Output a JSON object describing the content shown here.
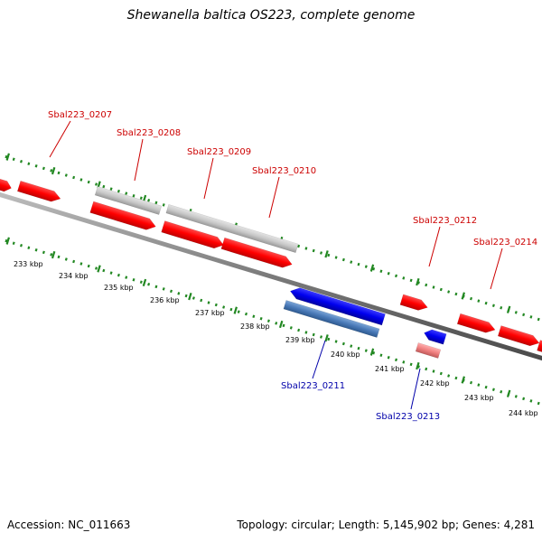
{
  "title": "Shewanella baltica OS223, complete genome",
  "footer": {
    "accession": "Accession: NC_011663",
    "summary": "Topology: circular; Length: 5,145,902 bp; Genes: 4,281"
  },
  "colors": {
    "forward_cds": "#ff0000",
    "reverse_cds": "#0000ee",
    "pseudo_gene": "#c8c8c8",
    "label_forward": "#cc0000",
    "label_reverse": "#0000aa",
    "ruler": "#228822",
    "backbone": "#808080"
  },
  "kbp_labels": [
    "233 kbp",
    "234 kbp",
    "235 kbp",
    "236 kbp",
    "237 kbp",
    "238 kbp",
    "239 kbp",
    "240 kbp",
    "241 kbp",
    "242 kbp",
    "243 kbp",
    "244 kbp"
  ],
  "gene_labels": {
    "g0207": "Sbal223_0207",
    "g0208": "Sbal223_0208",
    "g0209": "Sbal223_0209",
    "g0210": "Sbal223_0210",
    "g0211": "Sbal223_0211",
    "g0212": "Sbal223_0212",
    "g0213": "Sbal223_0213",
    "g0214": "Sbal223_0214"
  }
}
